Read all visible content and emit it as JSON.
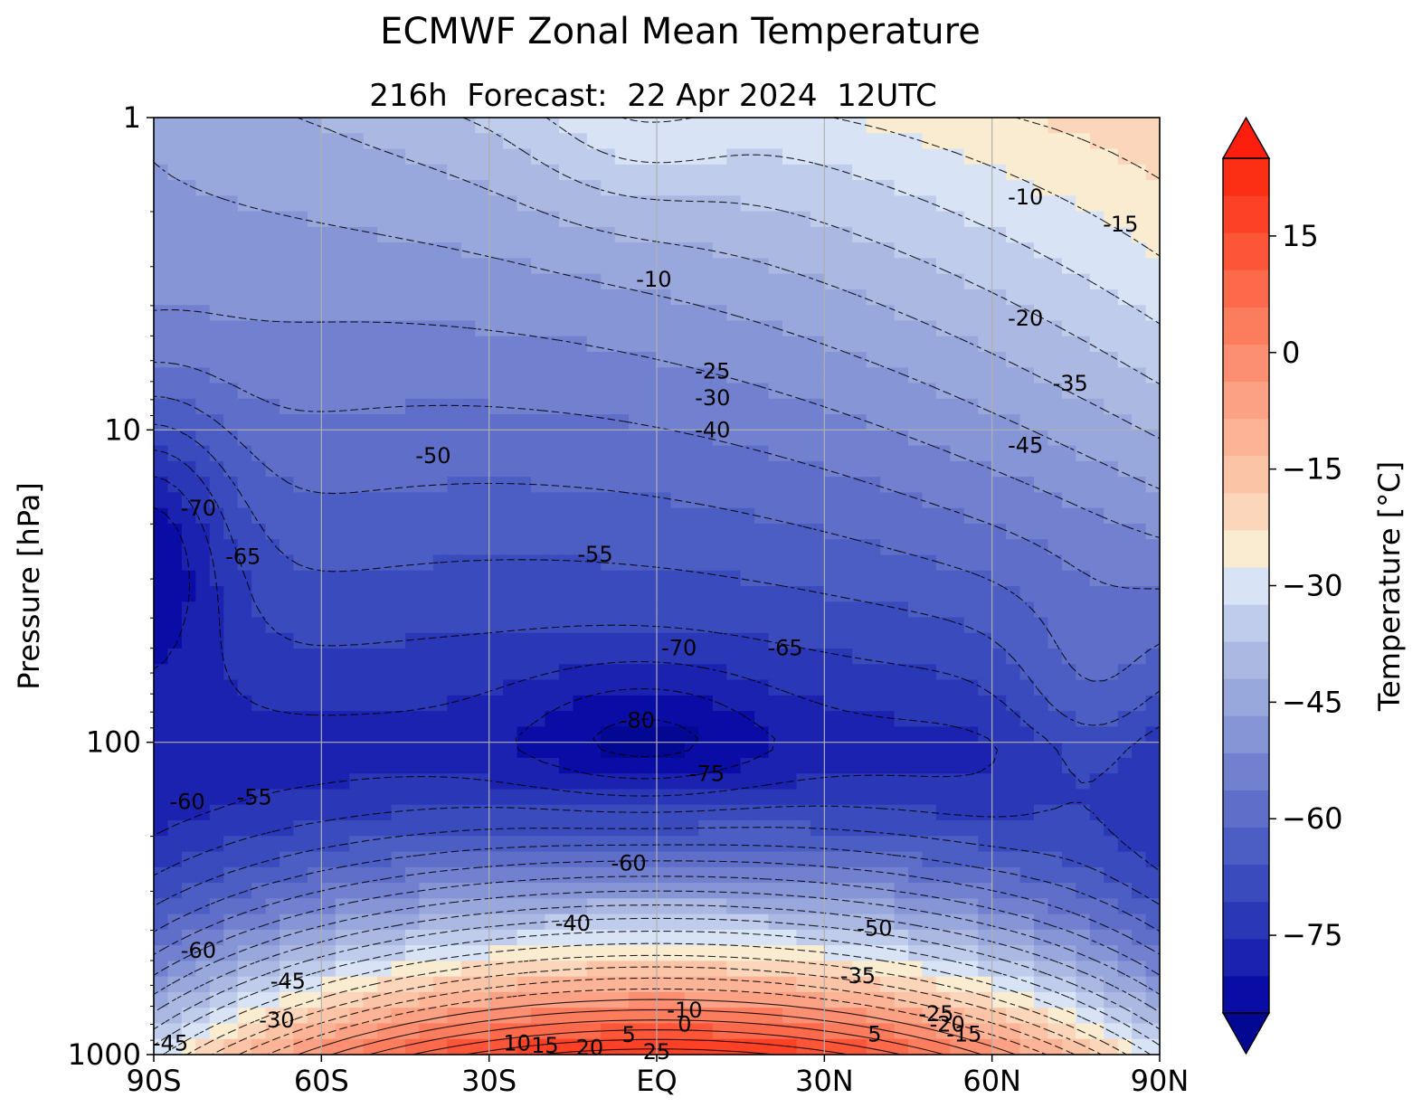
{
  "chart_data": {
    "type": "heatmap",
    "title": "ECMWF Zonal Mean Temperature",
    "subtitle": "216h  Forecast:  22 Apr 2024  12UTC",
    "ylabel": "Pressure [hPa]",
    "xlabel": "",
    "x_scale": "linear",
    "y_scale": "log (inverted)",
    "xlim": [
      -90,
      90
    ],
    "ylim": [
      1000,
      1
    ],
    "grid": true,
    "x_ticks": [
      {
        "value": -90,
        "label": "90S"
      },
      {
        "value": -60,
        "label": "60S"
      },
      {
        "value": -30,
        "label": "30S"
      },
      {
        "value": 0,
        "label": "EQ"
      },
      {
        "value": 30,
        "label": "30N"
      },
      {
        "value": 60,
        "label": "60N"
      },
      {
        "value": 90,
        "label": "90N"
      }
    ],
    "y_ticks": [
      {
        "value": 1,
        "label": "1"
      },
      {
        "value": 10,
        "label": "10"
      },
      {
        "value": 100,
        "label": "100"
      },
      {
        "value": 1000,
        "label": "1000"
      }
    ],
    "colorbar": {
      "label": "Temperature [°C]",
      "min": -85,
      "max": 25,
      "step": 5,
      "extend": "both",
      "tick_values": [
        -75,
        -60,
        -45,
        -30,
        -15,
        0,
        15
      ],
      "tick_labels": [
        "−75",
        "−60",
        "−45",
        "−30",
        "−15",
        "0",
        "15"
      ],
      "colors": [
        "#0a0da5",
        "#1b22b0",
        "#2a37b7",
        "#3a4bbd",
        "#4c5ec4",
        "#5f6fc9",
        "#7281cf",
        "#8595d6",
        "#98a7dc",
        "#abb8e2",
        "#c0cceb",
        "#d8e4f6",
        "#f9ecd0",
        "#fcd6bb",
        "#fcc4a6",
        "#fcb396",
        "#fca184",
        "#fc8f71",
        "#fc7c5e",
        "#fc694b",
        "#fc5538",
        "#fc4126",
        "#fc2f14"
      ],
      "under_color": "#020892",
      "over_color": "#fd1e0d"
    },
    "contour_labels": [
      {
        "lat": -0.5,
        "p": 3.3,
        "label": "-10"
      },
      {
        "lat": 66,
        "p": 1.8,
        "label": "-10"
      },
      {
        "lat": 83,
        "p": 2.2,
        "label": "-15"
      },
      {
        "lat": 66,
        "p": 4.4,
        "label": "-20"
      },
      {
        "lat": 10,
        "p": 6.5,
        "label": "-25"
      },
      {
        "lat": 10,
        "p": 7.9,
        "label": "-30"
      },
      {
        "lat": 74,
        "p": 7.1,
        "label": "-35"
      },
      {
        "lat": 10,
        "p": 10.0,
        "label": "-40"
      },
      {
        "lat": 66,
        "p": 11.2,
        "label": "-45"
      },
      {
        "lat": -40,
        "p": 12.1,
        "label": "-50"
      },
      {
        "lat": -11,
        "p": 25.0,
        "label": "-55"
      },
      {
        "lat": -82,
        "p": 17.8,
        "label": "-70"
      },
      {
        "lat": -74,
        "p": 25.5,
        "label": "-65"
      },
      {
        "lat": 4,
        "p": 50.0,
        "label": "-70"
      },
      {
        "lat": 23,
        "p": 50.0,
        "label": "-65"
      },
      {
        "lat": -3.5,
        "p": 85.0,
        "label": "-80"
      },
      {
        "lat": 9,
        "p": 126.0,
        "label": "-75"
      },
      {
        "lat": -5,
        "p": 244.0,
        "label": "-60"
      },
      {
        "lat": -84,
        "p": 155.0,
        "label": "-60"
      },
      {
        "lat": -72,
        "p": 150.0,
        "label": "-55"
      },
      {
        "lat": -82,
        "p": 465.0,
        "label": "-60"
      },
      {
        "lat": -15,
        "p": 380.0,
        "label": "-40"
      },
      {
        "lat": 39,
        "p": 395.0,
        "label": "-50"
      },
      {
        "lat": -66,
        "p": 583.0,
        "label": "-45"
      },
      {
        "lat": 36,
        "p": 560.0,
        "label": "-35"
      },
      {
        "lat": -68,
        "p": 775.0,
        "label": "-30"
      },
      {
        "lat": -87,
        "p": 920.0,
        "label": "-45"
      },
      {
        "lat": 5,
        "p": 722.0,
        "label": "-10"
      },
      {
        "lat": 50,
        "p": 742.0,
        "label": "-25"
      },
      {
        "lat": 52,
        "p": 800.0,
        "label": "-20"
      },
      {
        "lat": 55,
        "p": 860.0,
        "label": "-15"
      },
      {
        "lat": 5,
        "p": 800.0,
        "label": "0"
      },
      {
        "lat": -5,
        "p": 865.0,
        "label": "5"
      },
      {
        "lat": 39,
        "p": 860.0,
        "label": "5"
      },
      {
        "lat": -25,
        "p": 920.0,
        "label": "10"
      },
      {
        "lat": -20,
        "p": 935.0,
        "label": "15"
      },
      {
        "lat": -12,
        "p": 950.0,
        "label": "20"
      },
      {
        "lat": 0,
        "p": 980.0,
        "label": "25"
      }
    ]
  }
}
